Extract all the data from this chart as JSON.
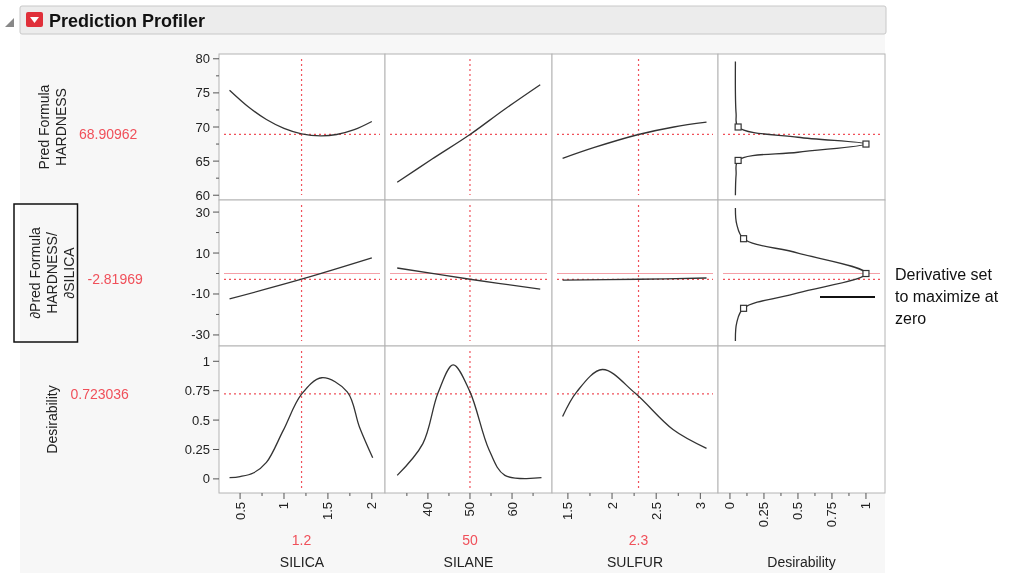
{
  "chart_data": [
    {
      "type": "line",
      "title": "Prediction Profiler",
      "ylabel": "Pred Formula HARDNESS",
      "xlim": [
        0.26,
        2.15
      ],
      "ylim": [
        59.3,
        80.7
      ],
      "yticks": [
        60,
        {
          "value": 62.5,
          "label": null
        },
        65,
        {
          "value": 67.5,
          "label": null
        },
        70,
        {
          "value": 72.5,
          "label": null
        },
        75,
        {
          "value": 77.5,
          "label": null
        },
        80
      ],
      "tick_labels": "y",
      "ref_lines": [
        {
          "axis": "x",
          "value": 1.2,
          "color": "#f0505a",
          "line_style": "dotted"
        },
        {
          "axis": "y",
          "value": 68.90962,
          "label": "68.90962",
          "color": "#f0505a",
          "line_style": "dotted"
        }
      ],
      "series": [
        {
          "color": "#333333",
          "x": [
            0.38,
            0.6,
            0.8,
            1.0,
            1.2,
            1.42,
            1.6,
            1.8,
            2.0
          ],
          "values": [
            75.4,
            72.9,
            71.1,
            69.8,
            69.0,
            68.7,
            68.9,
            69.6,
            70.8
          ]
        }
      ]
    },
    {
      "type": "line",
      "xlim": [
        29.8,
        69.5
      ],
      "ylim": [
        59.3,
        80.7
      ],
      "tick_labels": false,
      "ref_lines": [
        {
          "axis": "x",
          "value": 50,
          "color": "#f0505a",
          "line_style": "dotted"
        },
        {
          "axis": "y",
          "value": 68.90962,
          "color": "#f0505a",
          "line_style": "dotted"
        }
      ],
      "series": [
        {
          "color": "#333333",
          "x": [
            32.7,
            41,
            50,
            58,
            66.7
          ],
          "values": [
            61.9,
            65.3,
            68.9,
            72.5,
            76.2
          ]
        }
      ]
    },
    {
      "type": "line",
      "xlim": [
        1.32,
        3.2
      ],
      "ylim": [
        59.3,
        80.7
      ],
      "tick_labels": false,
      "ref_lines": [
        {
          "axis": "x",
          "value": 2.3,
          "color": "#f0505a",
          "line_style": "dotted"
        },
        {
          "axis": "y",
          "value": 68.90962,
          "color": "#f0505a",
          "line_style": "dotted"
        }
      ],
      "series": [
        {
          "color": "#333333",
          "x": [
            1.44,
            1.8,
            2.3,
            2.7,
            3.07
          ],
          "values": [
            65.4,
            67.0,
            68.9,
            70.0,
            70.7
          ]
        }
      ]
    },
    {
      "type": "line",
      "xlim": [
        -0.088,
        1.14
      ],
      "ylim": [
        59.3,
        80.7
      ],
      "tick_labels": false,
      "ref_lines": [
        {
          "axis": "y",
          "value": 68.90962,
          "color": "#f0505a",
          "line_style": "dotted"
        }
      ],
      "series": [
        {
          "color": "#333333",
          "x": [
            0.04,
            0.045,
            0.06,
            0.5,
            1.0,
            0.5,
            0.06,
            0.045,
            0.04
          ],
          "values": [
            79.6,
            72,
            70,
            68.5,
            67.5,
            66.3,
            65.1,
            63,
            60
          ]
        },
        {
          "type": "scatter",
          "marker": "square",
          "color": "#333333",
          "x": [
            0.06,
            1.0,
            0.06
          ],
          "values": [
            70,
            67.5,
            65.1
          ]
        }
      ]
    },
    {
      "type": "line",
      "ylabel": "∂Pred Formula HARDNESS/∂SILICA",
      "xlim": [
        0.26,
        2.15
      ],
      "ylim": [
        -35.4,
        35.9
      ],
      "yticks": [
        -30,
        {
          "value": -20,
          "label": null
        },
        -10,
        {
          "value": 0,
          "label": null
        },
        10,
        {
          "value": 20,
          "label": null
        },
        30
      ],
      "tick_labels": "y",
      "ref_lines": [
        {
          "axis": "y",
          "value": 0,
          "color": "#f4a0a8",
          "line_style": "solid"
        },
        {
          "axis": "x",
          "value": 1.2,
          "color": "#f0505a",
          "line_style": "dotted"
        },
        {
          "axis": "y",
          "value": -2.81969,
          "label": "-2.81969",
          "color": "#f0505a",
          "line_style": "dotted"
        }
      ],
      "series": [
        {
          "color": "#333333",
          "x": [
            0.38,
            1.2,
            2.0
          ],
          "values": [
            -12.4,
            -2.8,
            7.6
          ]
        }
      ]
    },
    {
      "type": "line",
      "xlim": [
        29.8,
        69.5
      ],
      "ylim": [
        -35.4,
        35.9
      ],
      "tick_labels": false,
      "ref_lines": [
        {
          "axis": "y",
          "value": 0,
          "color": "#f4a0a8",
          "line_style": "solid"
        },
        {
          "axis": "x",
          "value": 50,
          "color": "#f0505a",
          "line_style": "dotted"
        },
        {
          "axis": "y",
          "value": -2.81969,
          "color": "#f0505a",
          "line_style": "dotted"
        }
      ],
      "series": [
        {
          "color": "#333333",
          "x": [
            32.7,
            50,
            66.7
          ],
          "values": [
            2.7,
            -2.8,
            -7.6
          ]
        }
      ]
    },
    {
      "type": "line",
      "xlim": [
        1.32,
        3.2
      ],
      "ylim": [
        -35.4,
        35.9
      ],
      "tick_labels": false,
      "ref_lines": [
        {
          "axis": "y",
          "value": 0,
          "color": "#f4a0a8",
          "line_style": "solid"
        },
        {
          "axis": "x",
          "value": 2.3,
          "color": "#f0505a",
          "line_style": "dotted"
        },
        {
          "axis": "y",
          "value": -2.81969,
          "color": "#f0505a",
          "line_style": "dotted"
        }
      ],
      "series": [
        {
          "color": "#333333",
          "x": [
            1.44,
            2.3,
            3.07
          ],
          "values": [
            -3.2,
            -2.8,
            -2.2
          ]
        }
      ]
    },
    {
      "type": "line",
      "xlim": [
        -0.088,
        1.14
      ],
      "ylim": [
        -35.4,
        35.9
      ],
      "tick_labels": false,
      "annotations": [
        "Derivative set to maximize at zero"
      ],
      "ref_lines": [
        {
          "axis": "y",
          "value": 0,
          "color": "#f4a0a8",
          "line_style": "solid"
        },
        {
          "axis": "y",
          "value": -2.81969,
          "color": "#f0505a",
          "line_style": "dotted"
        }
      ],
      "series": [
        {
          "color": "#333333",
          "x": [
            0.04,
            0.05,
            0.1,
            0.5,
            1.0,
            0.5,
            0.1,
            0.05,
            0.04
          ],
          "values": [
            32,
            24,
            17,
            10,
            0,
            -9.5,
            -17,
            -24,
            -33
          ]
        },
        {
          "type": "scatter",
          "marker": "square",
          "color": "#333333",
          "x": [
            0.1,
            1.0,
            0.1
          ],
          "values": [
            17,
            0,
            -17
          ]
        }
      ]
    },
    {
      "type": "line",
      "ylabel": "Desirability",
      "xlabel": "SILICA",
      "xlim": [
        0.26,
        2.15
      ],
      "ylim": [
        -0.12,
        1.13
      ],
      "xticks": [
        0.5,
        {
          "value": 0.75,
          "label": null
        },
        1,
        {
          "value": 1.25,
          "label": null
        },
        1.5,
        {
          "value": 1.75,
          "label": null
        },
        2
      ],
      "yticks": [
        0,
        0.25,
        0.5,
        0.75,
        1
      ],
      "ref_lines": [
        {
          "axis": "x",
          "value": 1.2,
          "label": "1.2",
          "color": "#f0505a",
          "line_style": "dotted"
        },
        {
          "axis": "y",
          "value": 0.723036,
          "label": "0.723036",
          "color": "#f0505a",
          "line_style": "dotted"
        }
      ],
      "series": [
        {
          "color": "#333333",
          "x": [
            0.38,
            0.5,
            0.65,
            0.8,
            0.99,
            1.2,
            1.43,
            1.72,
            1.86,
            2.01
          ],
          "values": [
            0.01,
            0.02,
            0.05,
            0.14,
            0.41,
            0.72,
            0.86,
            0.74,
            0.44,
            0.18
          ]
        }
      ]
    },
    {
      "type": "line",
      "xlabel": "SILANE",
      "xlim": [
        29.8,
        69.5
      ],
      "ylim": [
        -0.12,
        1.13
      ],
      "xticks": [
        {
          "value": 35,
          "label": null
        },
        40,
        {
          "value": 45,
          "label": null
        },
        50,
        {
          "value": 55,
          "label": null
        },
        60,
        {
          "value": 65,
          "label": null
        }
      ],
      "tick_labels": "x",
      "ref_lines": [
        {
          "axis": "x",
          "value": 50,
          "label": "50",
          "color": "#f0505a",
          "line_style": "dotted"
        },
        {
          "axis": "y",
          "value": 0.723036,
          "color": "#f0505a",
          "line_style": "dotted"
        }
      ],
      "series": [
        {
          "color": "#333333",
          "x": [
            32.7,
            38.8,
            42.4,
            46,
            50,
            54.5,
            58.3,
            67
          ],
          "values": [
            0.03,
            0.3,
            0.73,
            0.97,
            0.74,
            0.25,
            0.03,
            0.01
          ]
        }
      ]
    },
    {
      "type": "line",
      "xlabel": "SULFUR",
      "xlim": [
        1.32,
        3.2
      ],
      "ylim": [
        -0.12,
        1.13
      ],
      "xticks": [
        1.5,
        {
          "value": 1.75,
          "label": null
        },
        2,
        {
          "value": 2.25,
          "label": null
        },
        2.5,
        {
          "value": 2.75,
          "label": null
        },
        3
      ],
      "tick_labels": "x",
      "ref_lines": [
        {
          "axis": "x",
          "value": 2.3,
          "label": "2.3",
          "color": "#f0505a",
          "line_style": "dotted"
        },
        {
          "axis": "y",
          "value": 0.723036,
          "color": "#f0505a",
          "line_style": "dotted"
        }
      ],
      "series": [
        {
          "color": "#333333",
          "x": [
            1.44,
            1.6,
            1.89,
            2.26,
            2.69,
            3.07
          ],
          "values": [
            0.53,
            0.74,
            0.93,
            0.73,
            0.42,
            0.26
          ]
        }
      ]
    },
    {
      "type": "line",
      "xlabel": "Desirability",
      "xlim": [
        -0.088,
        1.14
      ],
      "ylim": [
        -0.12,
        1.13
      ],
      "xticks": [
        0,
        {
          "value": 0.125,
          "label": null
        },
        0.25,
        {
          "value": 0.375,
          "label": null
        },
        0.5,
        {
          "value": 0.625,
          "label": null
        },
        0.75,
        {
          "value": 0.875,
          "label": null
        },
        1
      ],
      "tick_labels": "x"
    }
  ]
}
